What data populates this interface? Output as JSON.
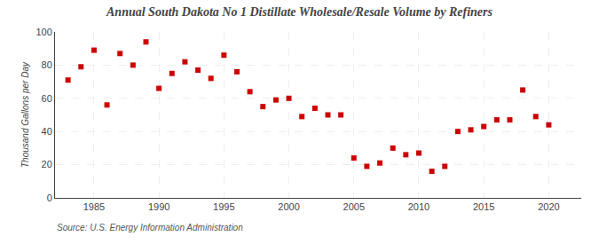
{
  "chart_data": {
    "type": "scatter",
    "title": "Annual South Dakota No 1 Distillate Wholesale/Resale Volume by Refiners",
    "ylabel": "Thousand Gallons per Day",
    "annotations": [
      "Source: U.S. Energy Information Administration"
    ],
    "x": [
      1983,
      1984,
      1985,
      1986,
      1987,
      1988,
      1989,
      1990,
      1991,
      1992,
      1993,
      1994,
      1995,
      1996,
      1997,
      1998,
      1999,
      2000,
      2001,
      2002,
      2003,
      2004,
      2005,
      2006,
      2007,
      2008,
      2009,
      2010,
      2011,
      2012,
      2013,
      2014,
      2015,
      2016,
      2017,
      2018,
      2019,
      2020,
      2021
    ],
    "values": [
      71,
      79,
      89,
      56,
      87,
      80,
      94,
      66,
      75,
      82,
      77,
      72,
      86,
      76,
      64,
      55,
      59,
      60,
      49,
      54,
      50,
      50,
      24,
      19,
      21,
      30,
      26,
      27,
      16,
      19,
      40,
      41,
      43,
      47,
      47,
      65,
      49,
      44,
      null
    ],
    "color": "#cc0000",
    "marker": "square",
    "xlim": [
      1982,
      2022.5
    ],
    "ylim": [
      0,
      100
    ],
    "xticks": [
      1985,
      1990,
      1995,
      2000,
      2005,
      2010,
      2015,
      2020
    ],
    "yticks": [
      0,
      20,
      40,
      60,
      80,
      100
    ],
    "grid": true
  }
}
